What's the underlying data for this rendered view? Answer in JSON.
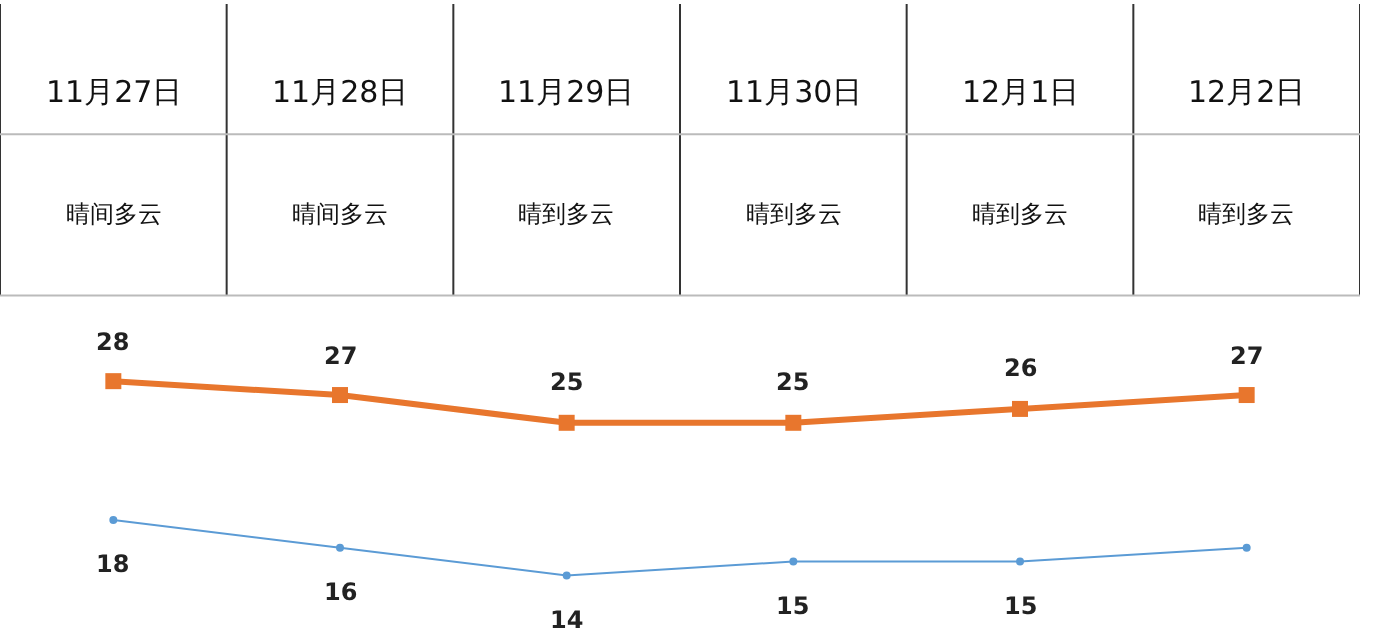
{
  "chart_data": {
    "type": "line",
    "categories": [
      "11月27日",
      "11月28日",
      "11月29日",
      "11月30日",
      "12月1日",
      "12月2日"
    ],
    "annotations": [
      "晴间多云",
      "晴间多云",
      "晴到多云",
      "晴到多云",
      "晴到多云",
      "晴到多云"
    ],
    "series": [
      {
        "color": "#e8762d",
        "marker": "square",
        "values": [
          28,
          27,
          25,
          25,
          26,
          27
        ],
        "value_labels": [
          "28",
          "27",
          "25",
          "25",
          "26",
          "27"
        ]
      },
      {
        "color": "#5b9bd5",
        "marker": "circle",
        "values": [
          18,
          16,
          14,
          15,
          15,
          16
        ],
        "value_labels": [
          "18",
          "16",
          "14",
          "15",
          "15",
          null
        ]
      }
    ]
  }
}
